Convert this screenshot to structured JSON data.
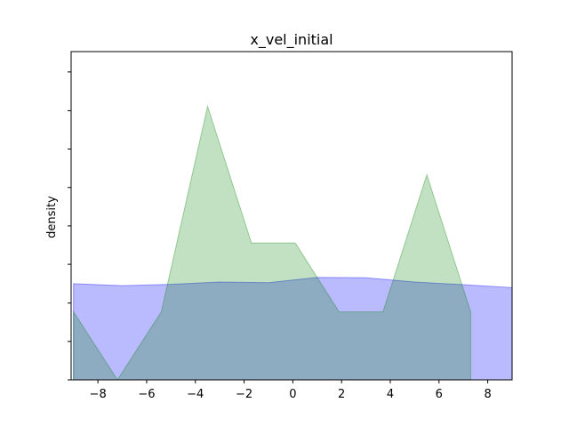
{
  "chart_data": {
    "type": "area",
    "title": "x_vel_initial",
    "xlabel": "",
    "ylabel": "density",
    "xlim": [
      -9.1,
      9.0
    ],
    "ylim": [
      0,
      1.0
    ],
    "xticks": [
      -8,
      -6,
      -4,
      -2,
      0,
      2,
      4,
      6,
      8
    ],
    "xtick_labels": [
      "−8",
      "−6",
      "−4",
      "−2",
      "0",
      "2",
      "4",
      "6",
      "8"
    ],
    "yticks": [
      0,
      0.117,
      0.234,
      0.352,
      0.469,
      0.586,
      0.703,
      0.82,
      0.938
    ],
    "ytick_labels_visible": false,
    "grid": false,
    "legend": false,
    "series": [
      {
        "color": "#0000ff",
        "opacity": 0.27,
        "x": [
          -9.0,
          -7.0,
          -5.0,
          -3.0,
          -1.0,
          1.0,
          3.0,
          5.0,
          7.0,
          9.0
        ],
        "y": [
          0.293,
          0.287,
          0.291,
          0.298,
          0.296,
          0.312,
          0.311,
          0.298,
          0.29,
          0.281
        ]
      },
      {
        "color": "#008000",
        "opacity": 0.24,
        "x": [
          -9.0,
          -7.2,
          -5.4,
          -3.5,
          -1.7,
          0.1,
          1.9,
          3.7,
          5.5,
          7.3
        ],
        "y": [
          0.207,
          0.0,
          0.207,
          0.833,
          0.417,
          0.417,
          0.207,
          0.207,
          0.625,
          0.207
        ]
      }
    ]
  }
}
